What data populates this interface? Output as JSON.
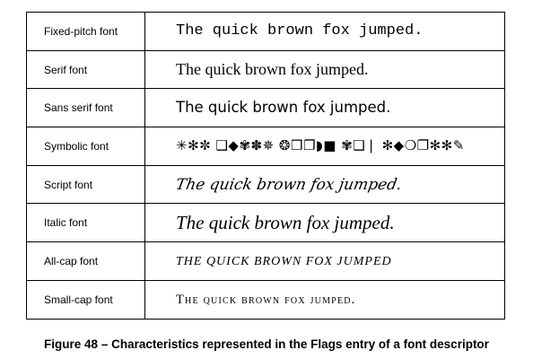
{
  "rows": [
    {
      "label": "Fixed-pitch font",
      "sample": "The quick brown fox jumped."
    },
    {
      "label": "Serif font",
      "sample": "The quick brown fox jumped."
    },
    {
      "label": "Sans serif font",
      "sample": "The quick brown fox jumped."
    },
    {
      "label": "Symbolic font",
      "sample": "✳✻✼ ❑◆✾✽✵ ❂❒❐◗■ ✾❑❘ ✻◆❍❐✻✻✎"
    },
    {
      "label": "Script font",
      "sample": "The quick brown fox jumped."
    },
    {
      "label": "Italic font",
      "sample": "The quick brown fox jumped."
    },
    {
      "label": "All-cap font",
      "sample": "THE QUICK BROWN FOX JUMPED"
    },
    {
      "label": "Small-cap font",
      "sample": "The quick brown fox jumped."
    }
  ],
  "caption": "Figure 48 –  Characteristics represented in the Flags entry of a font descriptor"
}
